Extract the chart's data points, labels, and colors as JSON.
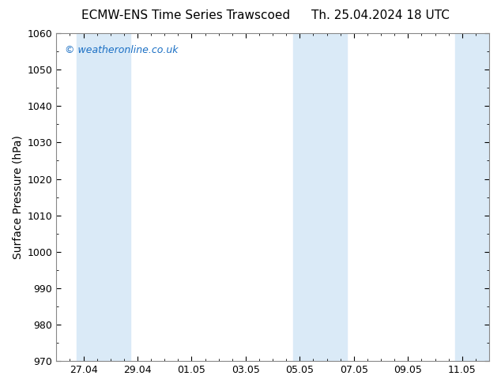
{
  "title_left": "ECMW-ENS Time Series Trawscoed",
  "title_right": "Th. 25.04.2024 18 UTC",
  "ylabel": "Surface Pressure (hPa)",
  "ylim": [
    970,
    1060
  ],
  "yticks": [
    970,
    980,
    990,
    1000,
    1010,
    1020,
    1030,
    1040,
    1050,
    1060
  ],
  "xlabel_ticks": [
    "27.04",
    "29.04",
    "01.05",
    "03.05",
    "05.05",
    "07.05",
    "09.05",
    "11.05"
  ],
  "x_tick_positions": [
    1,
    3,
    5,
    7,
    9,
    11,
    13,
    15
  ],
  "xlim": [
    0,
    16
  ],
  "background_color": "#ffffff",
  "plot_bg_color": "#ffffff",
  "shaded_bands": [
    {
      "xstart": 0.75,
      "xend": 1.75,
      "color": "#daeaf7"
    },
    {
      "xstart": 1.75,
      "xend": 2.75,
      "color": "#daeaf7"
    },
    {
      "xstart": 8.75,
      "xend": 9.75,
      "color": "#daeaf7"
    },
    {
      "xstart": 9.75,
      "xend": 10.75,
      "color": "#daeaf7"
    },
    {
      "xstart": 14.75,
      "xend": 16.0,
      "color": "#daeaf7"
    }
  ],
  "watermark_text": "© weatheronline.co.uk",
  "watermark_color": "#1a6fc4",
  "watermark_fontsize": 9,
  "title_fontsize": 11,
  "tick_fontsize": 9,
  "ylabel_fontsize": 10
}
